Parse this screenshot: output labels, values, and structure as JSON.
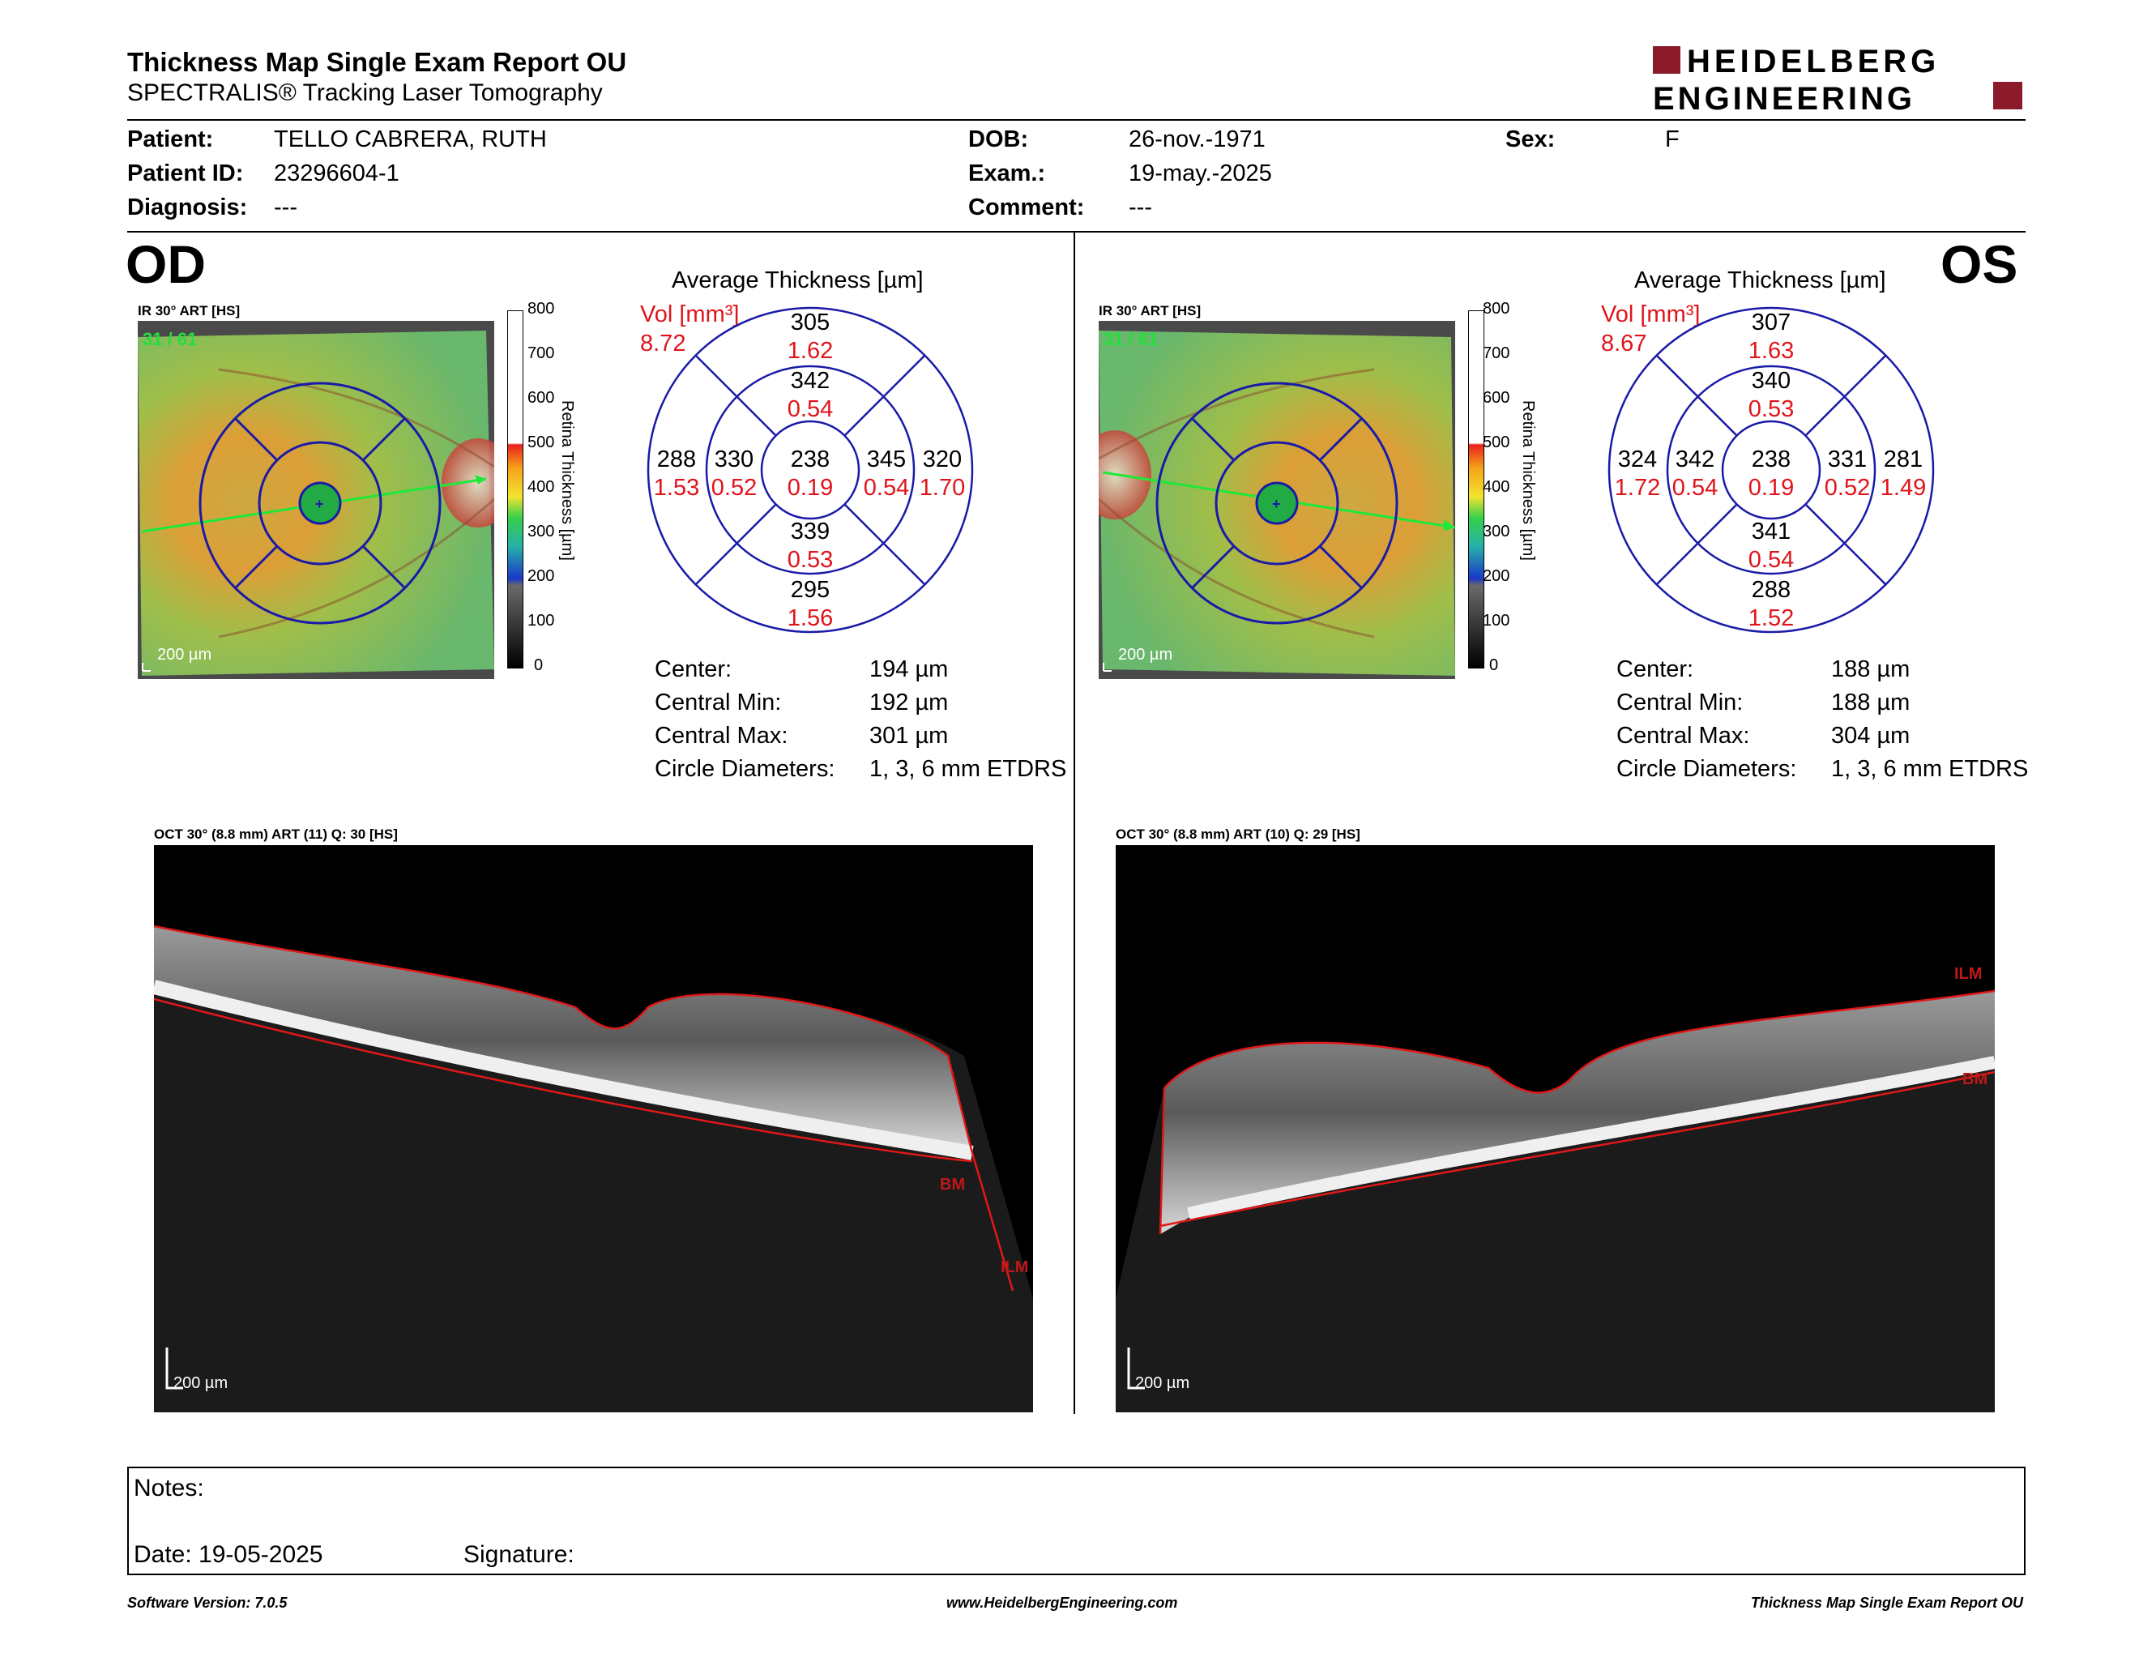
{
  "header": {
    "title": "Thickness Map Single Exam Report OU",
    "subtitle": "SPECTRALIS® Tracking Laser Tomography",
    "logo_line1": "HEIDELBERG",
    "logo_line2": "ENGINEERING",
    "logo_color": "#8b1a2b"
  },
  "patient": {
    "patient_label": "Patient:",
    "patient_value": "TELLO CABRERA, RUTH",
    "id_label": "Patient ID:",
    "id_value": "23296604-1",
    "diagnosis_label": "Diagnosis:",
    "diagnosis_value": "---",
    "dob_label": "DOB:",
    "dob_value": "26-nov.-1971",
    "exam_label": "Exam.:",
    "exam_value": "19-may.-2025",
    "comment_label": "Comment:",
    "comment_value": "---",
    "sex_label": "Sex:",
    "sex_value": "F"
  },
  "od": {
    "eye_label": "OD",
    "ir_label": "IR 30° ART [HS]",
    "frame_count": "31 / 61",
    "scale_bar": "200 µm",
    "avg_title": "Average Thickness [µm]",
    "vol_label": "Vol [mm³]",
    "vol_value": "8.72",
    "sectors": {
      "outer_sup": {
        "t": "305",
        "v": "1.62"
      },
      "inner_sup": {
        "t": "342",
        "v": "0.54"
      },
      "outer_left": {
        "t": "288",
        "v": "1.53"
      },
      "inner_left": {
        "t": "330",
        "v": "0.52"
      },
      "center": {
        "t": "238",
        "v": "0.19"
      },
      "inner_right": {
        "t": "345",
        "v": "0.54"
      },
      "outer_right": {
        "t": "320",
        "v": "1.70"
      },
      "inner_inf": {
        "t": "339",
        "v": "0.53"
      },
      "outer_inf": {
        "t": "295",
        "v": "1.56"
      }
    },
    "stats": [
      {
        "label": "Center:",
        "value": "194 µm"
      },
      {
        "label": "Central Min:",
        "value": "192 µm"
      },
      {
        "label": "Central Max:",
        "value": "301 µm"
      },
      {
        "label": "Circle Diameters:",
        "value": "1, 3, 6 mm ETDRS"
      }
    ],
    "oct_label": "OCT 30° (8.8 mm) ART (11) Q: 30 [HS]",
    "oct_scale": "200 µm",
    "layer_ilm": "ILM",
    "layer_bm": "BM"
  },
  "os": {
    "eye_label": "OS",
    "ir_label": "IR 30° ART [HS]",
    "frame_count": "31 / 61",
    "scale_bar": "200 µm",
    "avg_title": "Average Thickness [µm]",
    "vol_label": "Vol [mm³]",
    "vol_value": "8.67",
    "sectors": {
      "outer_sup": {
        "t": "307",
        "v": "1.63"
      },
      "inner_sup": {
        "t": "340",
        "v": "0.53"
      },
      "outer_left": {
        "t": "324",
        "v": "1.72"
      },
      "inner_left": {
        "t": "342",
        "v": "0.54"
      },
      "center": {
        "t": "238",
        "v": "0.19"
      },
      "inner_right": {
        "t": "331",
        "v": "0.52"
      },
      "outer_right": {
        "t": "281",
        "v": "1.49"
      },
      "inner_inf": {
        "t": "341",
        "v": "0.54"
      },
      "outer_inf": {
        "t": "288",
        "v": "1.52"
      }
    },
    "stats": [
      {
        "label": "Center:",
        "value": "188 µm"
      },
      {
        "label": "Central Min:",
        "value": "188 µm"
      },
      {
        "label": "Central Max:",
        "value": "304 µm"
      },
      {
        "label": "Circle Diameters:",
        "value": "1, 3, 6 mm ETDRS"
      }
    ],
    "oct_label": "OCT 30° (8.8 mm) ART (10) Q: 29 [HS]",
    "oct_scale": "200 µm",
    "layer_ilm": "ILM",
    "layer_bm": "BM"
  },
  "color_scale": {
    "ticks": [
      "800",
      "700",
      "600",
      "500",
      "400",
      "300",
      "200",
      "100",
      "0"
    ],
    "title": "Retina Thickness [µm]"
  },
  "notes": {
    "notes_label": "Notes:",
    "date_label": "Date: 19-05-2025",
    "signature_label": "Signature:"
  },
  "footer": {
    "left": "Software Version: 7.0.5",
    "center": "www.HeidelbergEngineering.com",
    "right": "Thickness Map Single Exam Report OU"
  },
  "colors": {
    "etdrs_grid": "#1a1aa8",
    "volume_red": "#e0141b",
    "segmentation": "#e01818"
  }
}
